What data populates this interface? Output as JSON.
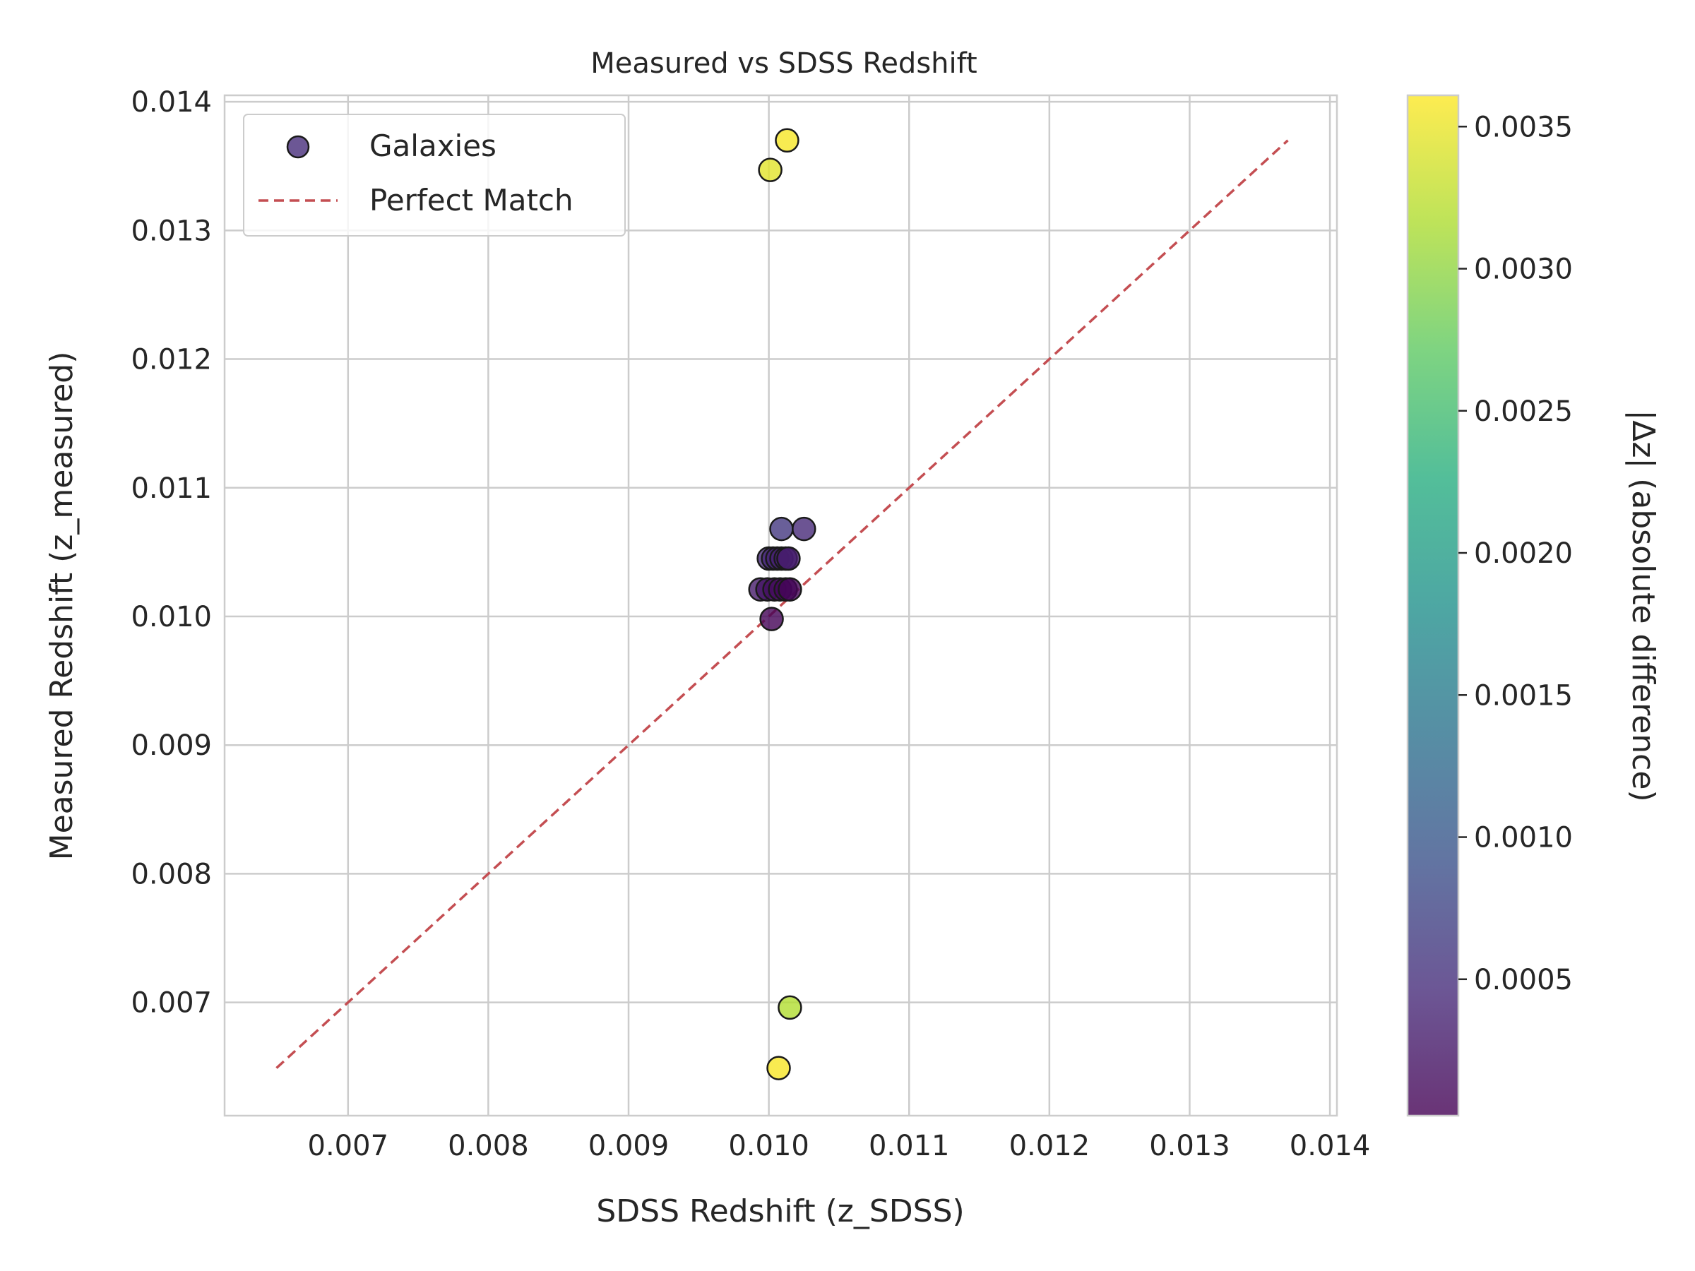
{
  "chart_data": {
    "type": "scatter",
    "title": "Measured vs SDSS Redshift",
    "xlabel": "SDSS Redshift (z_SDSS)",
    "ylabel": "Measured Redshift (z_measured)",
    "xlim": [
      0.00612,
      0.01405
    ],
    "ylim": [
      0.00612,
      0.01405
    ],
    "xticks": [
      "0.007",
      "0.008",
      "0.009",
      "0.010",
      "0.011",
      "0.012",
      "0.013",
      "0.014"
    ],
    "yticks": [
      "0.007",
      "0.008",
      "0.009",
      "0.010",
      "0.011",
      "0.012",
      "0.013",
      "0.014"
    ],
    "grid": true,
    "legend": {
      "position": "top-left",
      "entries": [
        "Galaxies",
        "Perfect Match"
      ]
    },
    "series": [
      {
        "name": "Galaxies",
        "kind": "scatter",
        "points": [
          {
            "x": 0.01013,
            "y": 0.0137,
            "c": 0.00357
          },
          {
            "x": 0.01001,
            "y": 0.01347,
            "c": 0.00346
          },
          {
            "x": 0.01009,
            "y": 0.01068,
            "c": 0.00059
          },
          {
            "x": 0.01025,
            "y": 0.01068,
            "c": 0.00043
          },
          {
            "x": 0.01,
            "y": 0.01045,
            "c": 0.00045
          },
          {
            "x": 0.01003,
            "y": 0.01045,
            "c": 0.00042
          },
          {
            "x": 0.01006,
            "y": 0.01045,
            "c": 0.00039
          },
          {
            "x": 0.01009,
            "y": 0.01045,
            "c": 0.00036
          },
          {
            "x": 0.01012,
            "y": 0.01045,
            "c": 0.00033
          },
          {
            "x": 0.01014,
            "y": 0.01045,
            "c": 0.00031
          },
          {
            "x": 0.00994,
            "y": 0.01021,
            "c": 0.00027
          },
          {
            "x": 0.00999,
            "y": 0.01021,
            "c": 0.00022
          },
          {
            "x": 0.01004,
            "y": 0.01021,
            "c": 0.00017
          },
          {
            "x": 0.01008,
            "y": 0.01021,
            "c": 0.00013
          },
          {
            "x": 0.01012,
            "y": 0.01021,
            "c": 9e-05
          },
          {
            "x": 0.01015,
            "y": 0.01021,
            "c": 6e-05
          },
          {
            "x": 0.01002,
            "y": 0.00998,
            "c": 4e-05
          },
          {
            "x": 0.01015,
            "y": 0.00696,
            "c": 0.00319
          },
          {
            "x": 0.01007,
            "y": 0.00649,
            "c": 0.00358
          }
        ]
      },
      {
        "name": "Perfect Match",
        "kind": "line",
        "x": [
          0.00649,
          0.0137
        ],
        "y": [
          0.00649,
          0.0137
        ],
        "color": "#c44e52"
      }
    ],
    "colorbar": {
      "label": "|Δz| (absolute difference)",
      "colormap": "viridis",
      "range": [
        2e-05,
        0.00361
      ],
      "ticks": [
        "0.0005",
        "0.0010",
        "0.0015",
        "0.0020",
        "0.0025",
        "0.0030",
        "0.0035"
      ],
      "tick_values": [
        0.0005,
        0.001,
        0.0015,
        0.002,
        0.0025,
        0.003,
        0.0035
      ]
    }
  }
}
